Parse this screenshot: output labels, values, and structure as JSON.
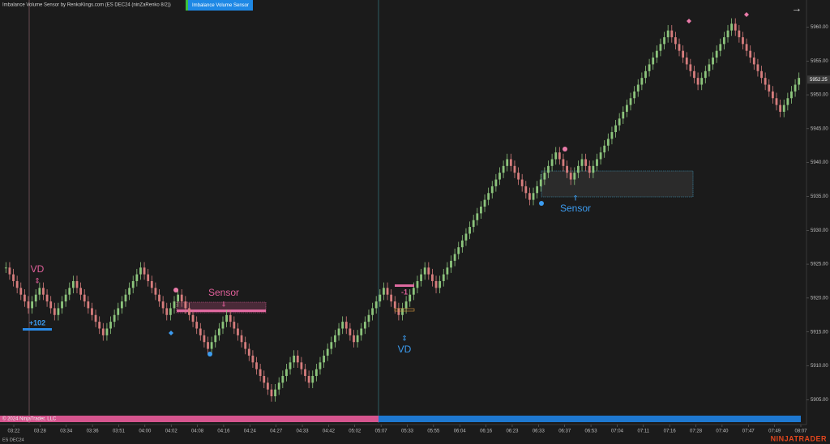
{
  "chart_data": {
    "type": "renko",
    "title": "Imbalance Volume Sensor by RenkoKings.com (ES DEC24 (ninZaRenko 8/2))",
    "indicator_button": "Imbalance Volume Sensor",
    "instrument": "ES DEC24",
    "copyright": "© 2024 NinjaTrader, LLC",
    "brand": "NINJATRADER",
    "last_price": 5952.25,
    "last_price_label": "5952.25",
    "up_color": "#8cc47c",
    "down_color": "#d67d7d",
    "ylim": [
      5903,
      5964
    ],
    "yticks": [
      {
        "value": 5905,
        "label": "5905.00"
      },
      {
        "value": 5910,
        "label": "5910.00"
      },
      {
        "value": 5915,
        "label": "5915.00"
      },
      {
        "value": 5920,
        "label": "5920.00"
      },
      {
        "value": 5925,
        "label": "5925.00"
      },
      {
        "value": 5930,
        "label": "5930.00"
      },
      {
        "value": 5935,
        "label": "5935.00"
      },
      {
        "value": 5940,
        "label": "5940.00"
      },
      {
        "value": 5945,
        "label": "5945.00"
      },
      {
        "value": 5950,
        "label": "5950.00"
      },
      {
        "value": 5955,
        "label": "5955.00"
      },
      {
        "value": 5960,
        "label": "5960.00"
      }
    ],
    "time_labels": [
      "03:22",
      "03:28",
      "03:34",
      "03:36",
      "03:51",
      "04:00",
      "04:02",
      "04:08",
      "04:16",
      "04:24",
      "04:27",
      "04:33",
      "04:42",
      "05:02",
      "05:07",
      "05:33",
      "05:55",
      "06:04",
      "06:16",
      "06:23",
      "06:33",
      "06:37",
      "06:53",
      "07:04",
      "07:11",
      "07:16",
      "07:28",
      "07:40",
      "07:47",
      "07:49",
      "08:07"
    ],
    "annotations": {
      "vd_top": "VD",
      "delta_top": "+102",
      "sensor_top": "Sensor",
      "delta_bottom": "-1",
      "vd_bottom": "VD",
      "sensor_bottom": "Sensor"
    },
    "values": [
      5924.5,
      5923.5,
      5922.5,
      5921.5,
      5920.5,
      5919.5,
      5918.5,
      5919.5,
      5920.5,
      5921.5,
      5920.5,
      5919.5,
      5918.5,
      5917.5,
      5918.5,
      5919.5,
      5920.5,
      5921.5,
      5922.5,
      5921.5,
      5920.5,
      5919.5,
      5918.5,
      5917.5,
      5916.5,
      5915.5,
      5914.5,
      5915.5,
      5916.5,
      5917.5,
      5918.5,
      5919.5,
      5920.5,
      5921.5,
      5922.5,
      5923.5,
      5924.5,
      5923.5,
      5922.5,
      5921.5,
      5920.5,
      5919.5,
      5918.5,
      5917.5,
      5918.5,
      5919.5,
      5920.5,
      5919.5,
      5918.5,
      5917.5,
      5916.5,
      5915.5,
      5914.5,
      5913.5,
      5912.5,
      5913.5,
      5914.5,
      5915.5,
      5916.5,
      5917.5,
      5916.5,
      5915.5,
      5914.5,
      5913.5,
      5912.5,
      5911.5,
      5910.5,
      5909.5,
      5908.5,
      5907.5,
      5906.5,
      5905.5,
      5906.5,
      5907.5,
      5908.5,
      5909.5,
      5910.5,
      5911.5,
      5910.5,
      5909.5,
      5908.5,
      5907.5,
      5908.5,
      5909.5,
      5910.5,
      5911.5,
      5912.5,
      5913.5,
      5914.5,
      5915.5,
      5916.5,
      5915.5,
      5914.5,
      5913.5,
      5914.5,
      5915.5,
      5916.5,
      5917.5,
      5918.5,
      5919.5,
      5920.5,
      5921.5,
      5920.5,
      5919.5,
      5918.5,
      5917.5,
      5918.5,
      5919.5,
      5920.5,
      5921.5,
      5922.5,
      5923.5,
      5924.5,
      5923.5,
      5922.5,
      5921.5,
      5922.5,
      5923.5,
      5924.5,
      5925.5,
      5926.5,
      5927.5,
      5928.5,
      5929.5,
      5930.5,
      5931.5,
      5932.5,
      5933.5,
      5934.5,
      5935.5,
      5936.5,
      5937.5,
      5938.5,
      5939.5,
      5940.5,
      5939.5,
      5938.5,
      5937.5,
      5936.5,
      5935.5,
      5934.5,
      5935.5,
      5936.5,
      5937.5,
      5938.5,
      5939.5,
      5940.5,
      5941.5,
      5940.5,
      5939.5,
      5938.5,
      5937.5,
      5938.5,
      5939.5,
      5940.5,
      5939.5,
      5938.5,
      5939.5,
      5940.5,
      5941.5,
      5942.5,
      5943.5,
      5944.5,
      5945.5,
      5946.5,
      5947.5,
      5948.5,
      5949.5,
      5950.5,
      5951.5,
      5952.5,
      5953.5,
      5954.5,
      5955.5,
      5956.5,
      5957.5,
      5958.5,
      5959.5,
      5958.5,
      5957.5,
      5956.5,
      5955.5,
      5954.5,
      5953.5,
      5952.5,
      5951.5,
      5952.5,
      5953.5,
      5954.5,
      5955.5,
      5956.5,
      5957.5,
      5958.5,
      5959.5,
      5960.5,
      5959.5,
      5958.5,
      5957.5,
      5956.5,
      5955.5,
      5954.5,
      5953.5,
      5952.5,
      5951.5,
      5950.5,
      5949.5,
      5948.5,
      5947.5,
      5948.5,
      5949.5,
      5950.5,
      5951.5,
      5952.5
    ]
  }
}
